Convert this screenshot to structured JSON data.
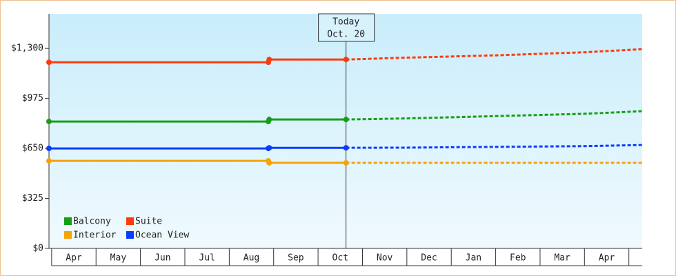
{
  "chart_data": {
    "type": "line",
    "x": [
      -0.06,
      4.88,
      4.9,
      6.63,
      8,
      10,
      12,
      13.3
    ],
    "xlim": [
      -0.06,
      13.3
    ],
    "categories": [
      "Apr",
      "May",
      "Jun",
      "Jul",
      "Aug",
      "Sep",
      "Oct",
      "Nov",
      "Dec",
      "Jan",
      "Feb",
      "Mar",
      "Apr"
    ],
    "ylim": [
      0,
      1525
    ],
    "yticks": [
      {
        "value": 0,
        "label": "$0"
      },
      {
        "value": 325,
        "label": "$325"
      },
      {
        "value": 650,
        "label": "$650"
      },
      {
        "value": 975,
        "label": "$975"
      },
      {
        "value": 1300,
        "label": "$1,300"
      }
    ],
    "today": {
      "label": "Today",
      "date": "Oct. 20",
      "x": 6.63
    },
    "legend": "lower left",
    "series": [
      {
        "name": "Balcony",
        "color": "#14a014",
        "values": [
          825,
          825,
          838,
          838,
          845,
          860,
          875,
          892
        ]
      },
      {
        "name": "Suite",
        "color": "#ff3a0a",
        "values": [
          1210,
          1210,
          1228,
          1228,
          1240,
          1255,
          1275,
          1295
        ]
      },
      {
        "name": "Interior",
        "color": "#f5a308",
        "values": [
          569,
          569,
          556,
          556,
          556,
          556,
          556,
          556
        ]
      },
      {
        "name": "Ocean View",
        "color": "#0a3cff",
        "values": [
          650,
          650,
          654,
          654,
          655,
          660,
          665,
          672
        ]
      }
    ]
  }
}
